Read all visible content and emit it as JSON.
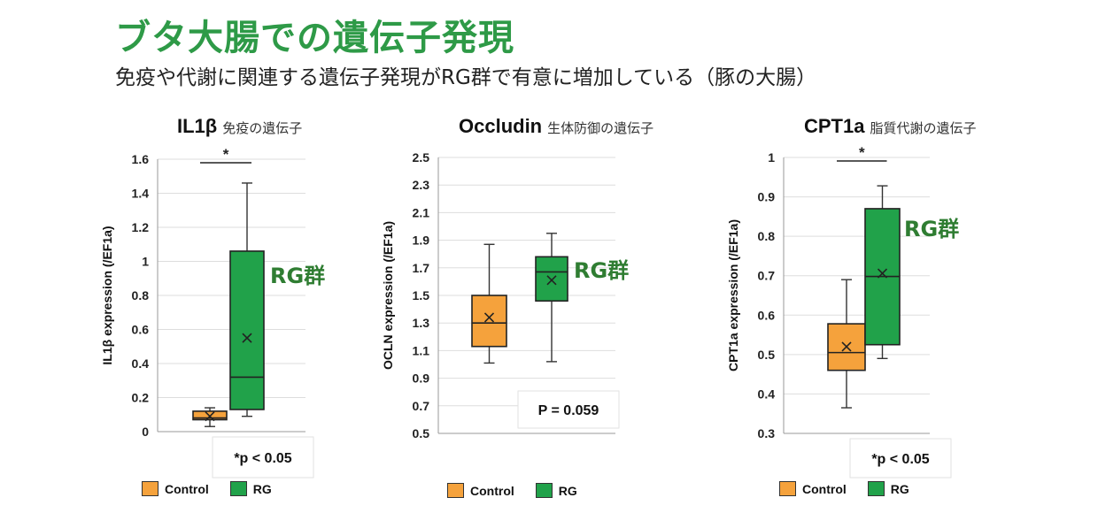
{
  "header": {
    "title": "ブタ大腸での遺伝子発現",
    "subtitle": "免疫や代謝に関連する遺伝子発現がRG群で有意に増加している（豚の大腸）"
  },
  "colors": {
    "title": "#2e9a47",
    "control": "#f5a23c",
    "rg": "#21a24a",
    "rg_label": "#2f7d32",
    "axis": "#999999",
    "grid": "#dddddd"
  },
  "chart_data": [
    {
      "type": "box",
      "title": "IL1β",
      "subtitle": "免疫の遺伝子",
      "ylabel": "IL1β expression (/EF1a)",
      "ylim": [
        0,
        1.6
      ],
      "yticks": [
        "0",
        "0.2",
        "0.4",
        "0.6",
        "0.8",
        "1",
        "1.2",
        "1.4",
        "1.6"
      ],
      "series": [
        {
          "name": "Control",
          "min": 0.03,
          "q1": 0.07,
          "median": 0.08,
          "q3": 0.12,
          "max": 0.14,
          "mean": 0.09
        },
        {
          "name": "RG",
          "min": 0.09,
          "q1": 0.13,
          "median": 0.32,
          "q3": 1.06,
          "max": 1.46,
          "mean": 0.55
        }
      ],
      "significance": "*",
      "stat_note": "*p < 0.05",
      "group_label": "RG群"
    },
    {
      "type": "box",
      "title": "Occludin",
      "subtitle": "生体防御の遺伝子",
      "ylabel": "OCLN expression (/EF1a)",
      "ylim": [
        0.5,
        2.5
      ],
      "yticks": [
        "0.5",
        "0.7",
        "0.9",
        "1.1",
        "1.3",
        "1.5",
        "1.7",
        "1.9",
        "2.1",
        "2.3",
        "2.5"
      ],
      "series": [
        {
          "name": "Control",
          "min": 1.01,
          "q1": 1.13,
          "median": 1.3,
          "q3": 1.5,
          "max": 1.87,
          "mean": 1.34
        },
        {
          "name": "RG",
          "min": 1.02,
          "q1": 1.46,
          "median": 1.67,
          "q3": 1.78,
          "max": 1.95,
          "mean": 1.61
        }
      ],
      "significance": "",
      "stat_note": "P = 0.059",
      "group_label": "RG群"
    },
    {
      "type": "box",
      "title": "CPT1a",
      "subtitle": "脂質代謝の遺伝子",
      "ylabel": "CPT1a expression (/EF1a)",
      "ylim": [
        0.3,
        1.0
      ],
      "yticks": [
        "0.3",
        "0.4",
        "0.5",
        "0.6",
        "0.7",
        "0.8",
        "0.9",
        "1"
      ],
      "series": [
        {
          "name": "Control",
          "min": 0.365,
          "q1": 0.46,
          "median": 0.505,
          "q3": 0.578,
          "max": 0.69,
          "mean": 0.52
        },
        {
          "name": "RG",
          "min": 0.49,
          "q1": 0.525,
          "median": 0.698,
          "q3": 0.87,
          "max": 0.928,
          "mean": 0.706
        }
      ],
      "significance": "*",
      "stat_note": "*p < 0.05",
      "group_label": "RG群"
    }
  ],
  "legend": {
    "control": "Control",
    "rg": "RG"
  }
}
